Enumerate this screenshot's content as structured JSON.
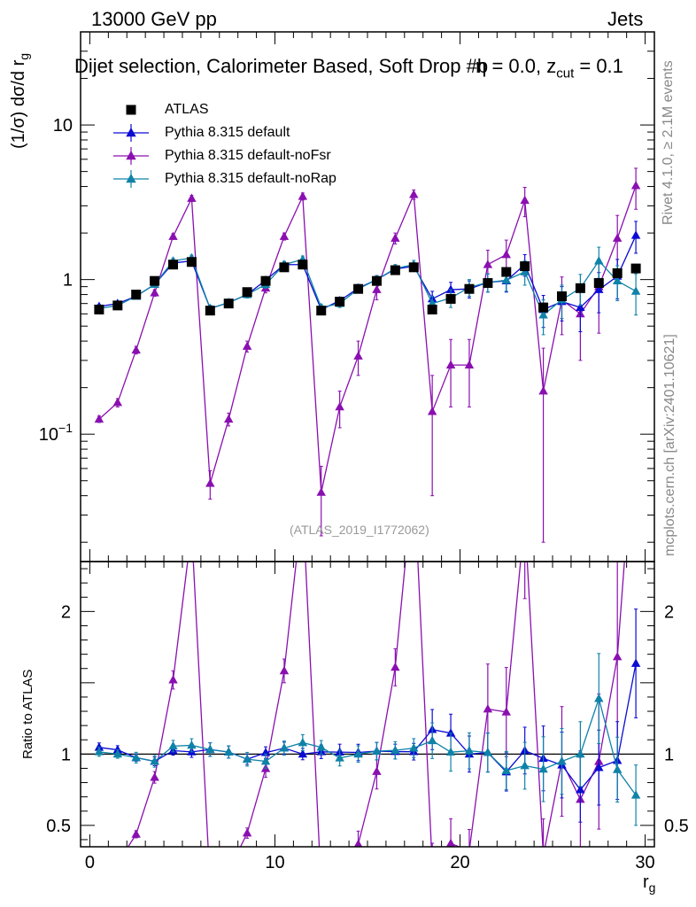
{
  "header": {
    "energy": "13000 GeV pp",
    "category": "Jets",
    "title_main": "Dijet selection, Calorimeter Based, Soft Drop #b",
    "title_eta": "η = 0.0, z",
    "title_sub": "cut",
    "title_end": " = 0.1",
    "analysis": "(ATLAS_2019_I1772062)",
    "side_rivet": "Rivet 4.1.0, ≥ 2.1M events",
    "side_site": "mcplots.cern.ch [arXiv:2401.10621]"
  },
  "axes": {
    "ylabel_main": "(1/σ) dσ/d r",
    "ylabel_main_sub": "g",
    "ylabel_ratio": "Ratio to ATLAS",
    "xlabel": "r",
    "xlabel_sub": "g"
  },
  "legend": [
    {
      "label": "ATLAS",
      "color": "#000000",
      "marker": "square"
    },
    {
      "label": "Pythia 8.315 default",
      "color": "#0b0bd4",
      "marker": "triangle"
    },
    {
      "label": "Pythia 8.315 default-noFsr",
      "color": "#8a0fb0",
      "marker": "triangle"
    },
    {
      "label": "Pythia 8.315 default-noRap",
      "color": "#0f82a8",
      "marker": "triangle"
    }
  ],
  "chart_data": {
    "type": "scatter",
    "x": [
      0.5,
      1.5,
      2.5,
      3.5,
      4.5,
      5.5,
      6.5,
      7.5,
      8.5,
      9.5,
      10.5,
      11.5,
      12.5,
      13.5,
      14.5,
      15.5,
      16.5,
      17.5,
      18.5,
      19.5,
      20.5,
      21.5,
      22.5,
      23.5,
      24.5,
      25.5,
      26.5,
      27.5,
      28.5,
      29.5
    ],
    "xlim": [
      -0.5,
      30.5
    ],
    "xticks": [
      0,
      10,
      20,
      30
    ],
    "main_ylim": [
      0.015,
      40
    ],
    "main_yscale": "log",
    "main_ytick_labels": [
      "10",
      "1",
      "10^-1"
    ],
    "ratio_ylim": [
      0.35,
      2.35
    ],
    "ratio_ytick_labels": [
      "2",
      "1",
      "0.5"
    ],
    "series": [
      {
        "name": "ATLAS",
        "values": [
          0.64,
          0.68,
          0.8,
          0.98,
          1.25,
          1.3,
          0.63,
          0.7,
          0.83,
          0.98,
          1.2,
          1.25,
          0.63,
          0.72,
          0.87,
          0.98,
          1.15,
          1.2,
          0.64,
          0.75,
          0.87,
          0.95,
          1.12,
          1.22,
          0.66,
          0.78,
          0.88,
          0.95,
          1.1,
          1.18
        ],
        "errors": [
          0.02,
          0.02,
          0.02,
          0.03,
          0.03,
          0.03,
          0.02,
          0.02,
          0.02,
          0.03,
          0.03,
          0.03,
          0.02,
          0.02,
          0.03,
          0.03,
          0.03,
          0.03,
          0.02,
          0.03,
          0.03,
          0.04,
          0.04,
          0.05,
          0.03,
          0.04,
          0.04,
          0.05,
          0.05,
          0.06
        ]
      },
      {
        "name": "Pythia 8.315 default",
        "values": [
          0.67,
          0.7,
          0.78,
          0.93,
          1.28,
          1.32,
          0.65,
          0.71,
          0.8,
          0.99,
          1.25,
          1.25,
          0.64,
          0.73,
          0.88,
          1.0,
          1.17,
          1.22,
          0.75,
          0.86,
          0.87,
          0.96,
          0.98,
          1.25,
          0.64,
          0.72,
          0.66,
          0.86,
          1.05,
          1.93
        ],
        "errors": [
          0.02,
          0.02,
          0.02,
          0.03,
          0.04,
          0.05,
          0.03,
          0.03,
          0.03,
          0.04,
          0.05,
          0.05,
          0.03,
          0.04,
          0.05,
          0.06,
          0.06,
          0.07,
          0.09,
          0.1,
          0.11,
          0.13,
          0.15,
          0.2,
          0.15,
          0.18,
          0.2,
          0.25,
          0.3,
          0.45
        ]
      },
      {
        "name": "Pythia 8.315 default-noFsr",
        "values": [
          0.125,
          0.16,
          0.35,
          0.82,
          1.9,
          3.35,
          0.048,
          0.125,
          0.37,
          0.88,
          1.9,
          3.45,
          0.042,
          0.15,
          0.32,
          0.86,
          1.85,
          3.55,
          0.14,
          0.28,
          0.28,
          1.25,
          1.45,
          3.25,
          0.19,
          0.74,
          0.6,
          0.9,
          1.85,
          4.05
        ],
        "errors": [
          0.006,
          0.01,
          0.02,
          0.04,
          0.08,
          0.15,
          0.01,
          0.012,
          0.03,
          0.06,
          0.1,
          0.18,
          0.02,
          0.04,
          0.08,
          0.12,
          0.15,
          0.25,
          0.1,
          0.13,
          0.13,
          0.3,
          0.35,
          0.7,
          0.17,
          0.3,
          0.3,
          0.45,
          0.75,
          1.2
        ]
      },
      {
        "name": "Pythia 8.315 default-noRap",
        "values": [
          0.65,
          0.68,
          0.78,
          0.93,
          1.32,
          1.38,
          0.65,
          0.71,
          0.8,
          0.93,
          1.25,
          1.35,
          0.66,
          0.7,
          0.87,
          1.0,
          1.18,
          1.25,
          0.7,
          0.76,
          0.89,
          0.96,
          0.99,
          1.12,
          0.59,
          0.74,
          0.88,
          1.32,
          0.98,
          0.84
        ],
        "errors": [
          0.02,
          0.02,
          0.03,
          0.04,
          0.05,
          0.06,
          0.03,
          0.03,
          0.04,
          0.05,
          0.06,
          0.07,
          0.03,
          0.04,
          0.05,
          0.06,
          0.07,
          0.08,
          0.08,
          0.1,
          0.11,
          0.13,
          0.15,
          0.2,
          0.15,
          0.18,
          0.2,
          0.3,
          0.25,
          0.25
        ]
      }
    ]
  }
}
